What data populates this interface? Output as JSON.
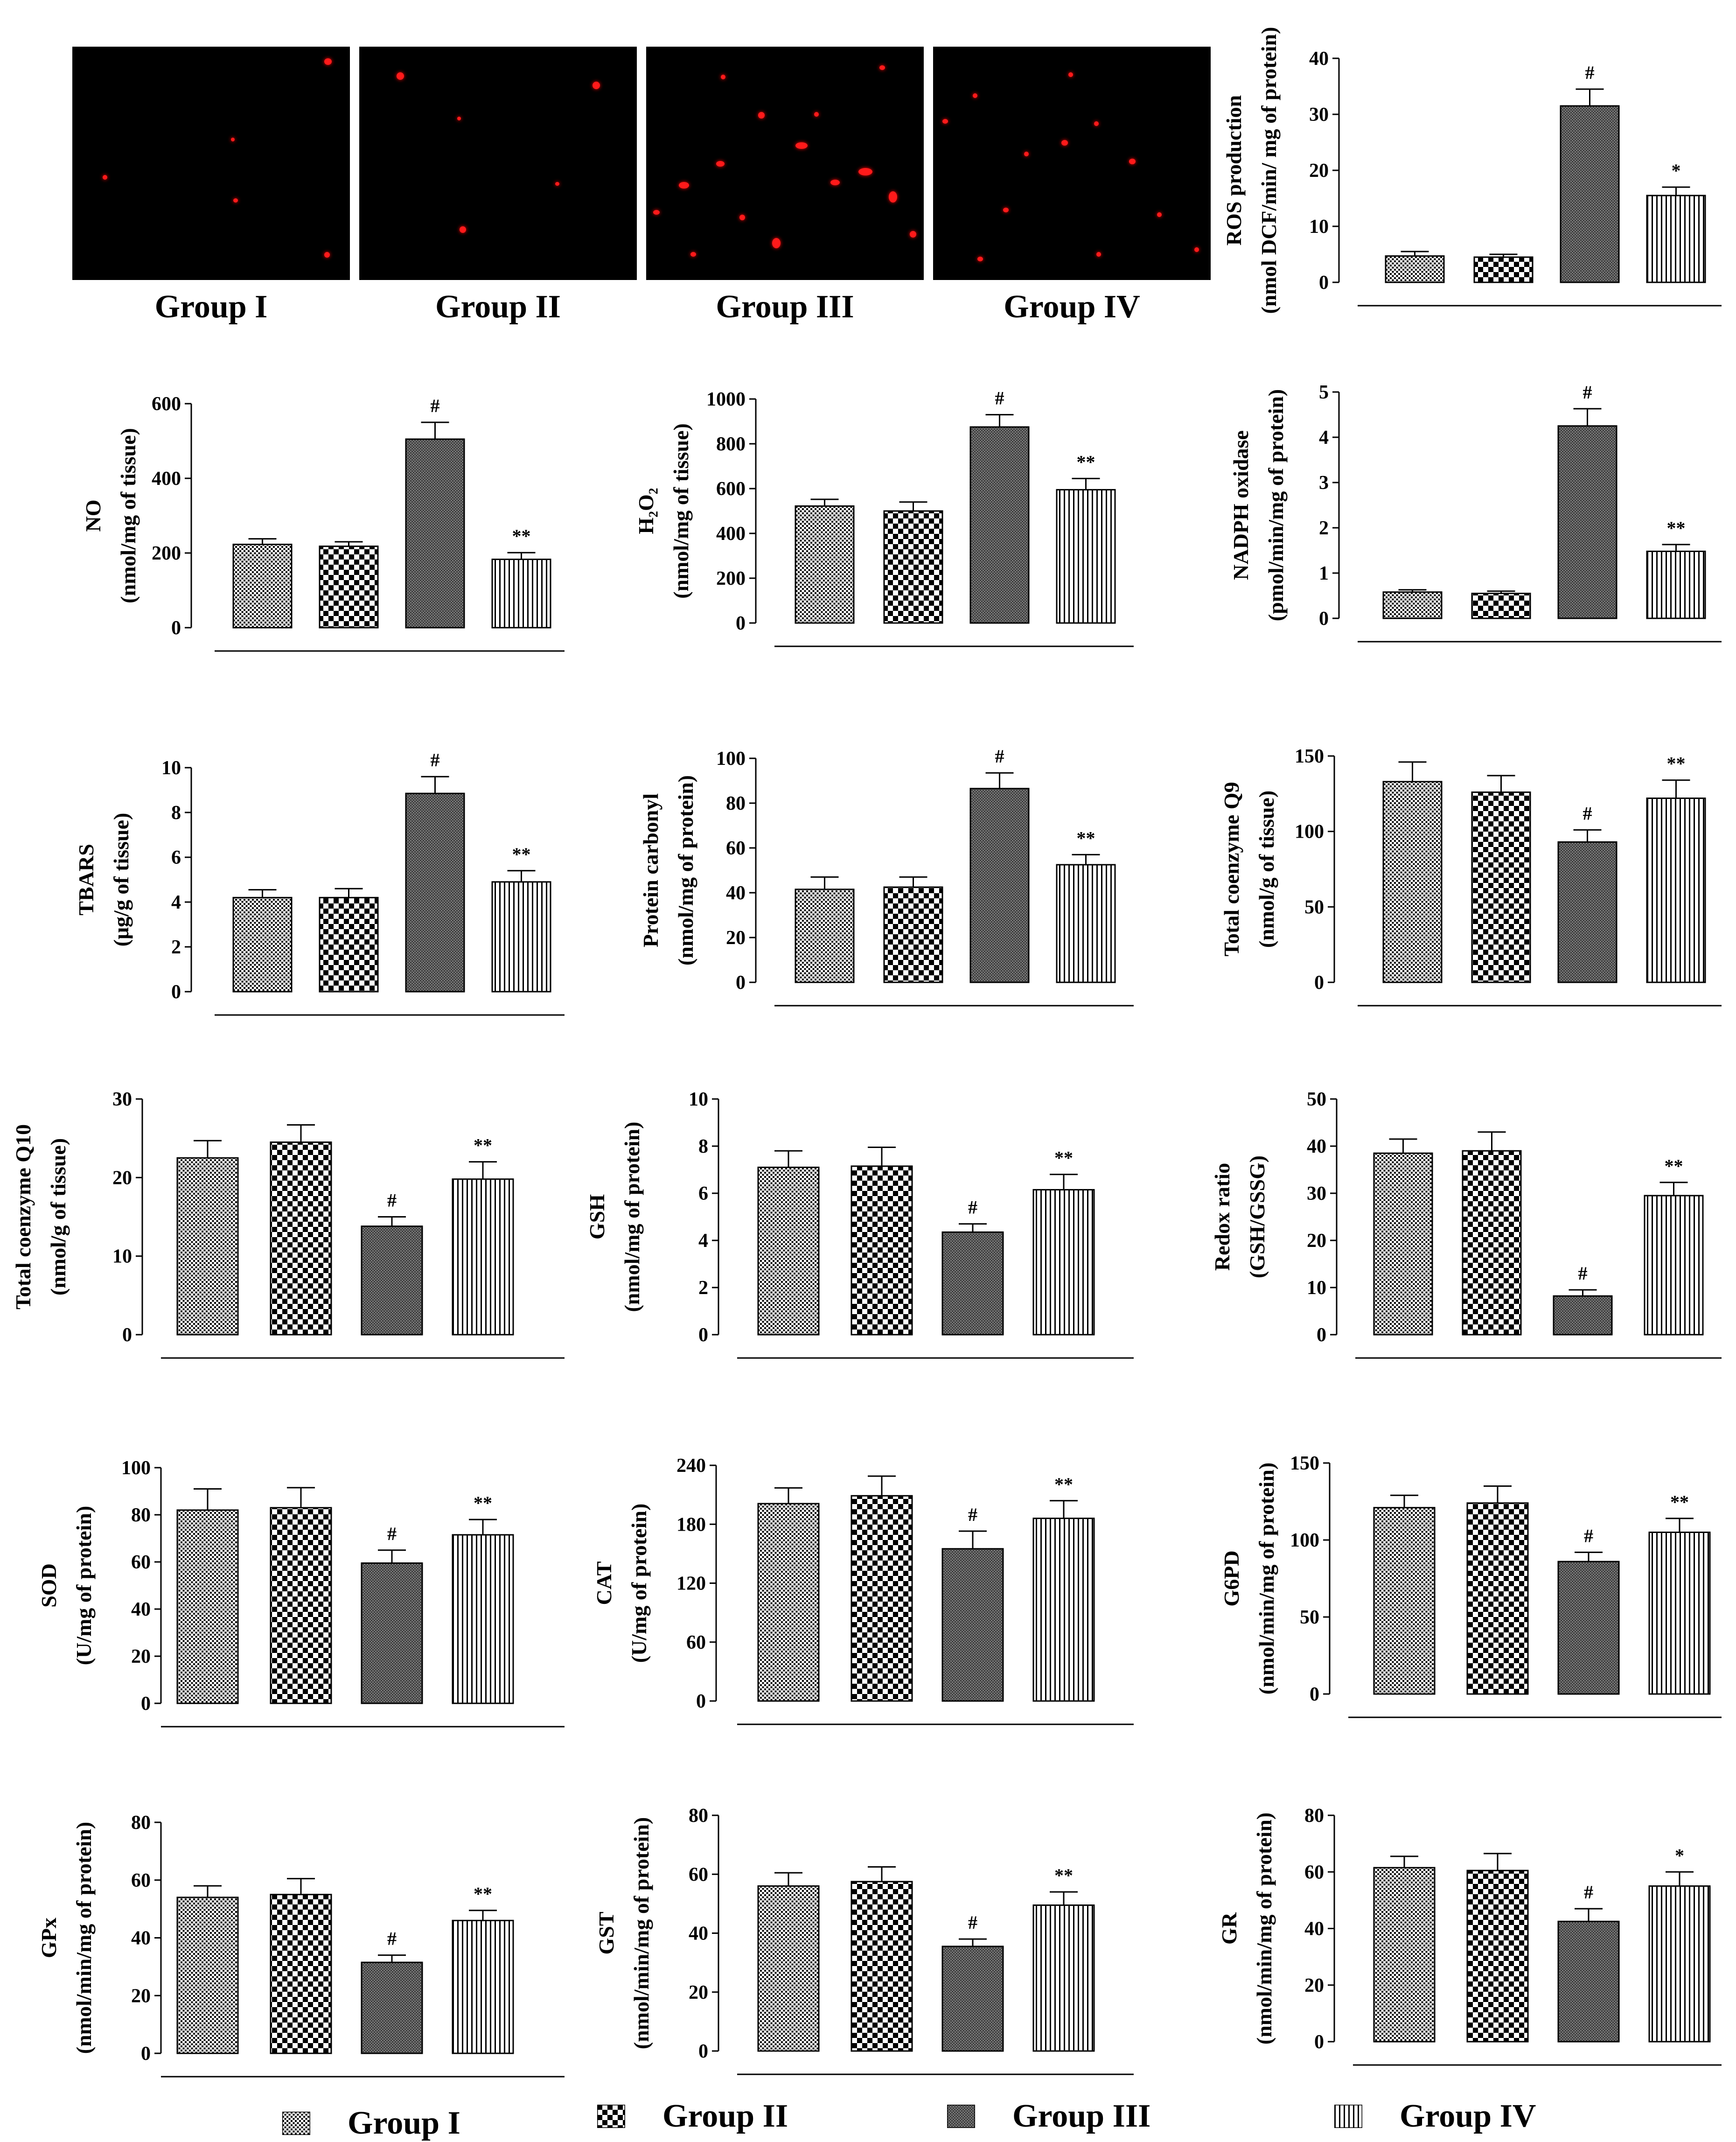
{
  "groups": [
    "Group I",
    "Group II",
    "Group III",
    "Group IV"
  ],
  "micrograph_labels": [
    "Group I",
    "Group II",
    "Group III",
    "Group IV"
  ],
  "legend": [
    {
      "label": "Group I",
      "pattern": "pat0"
    },
    {
      "label": "Group II",
      "pattern": "pat1"
    },
    {
      "label": "Group III",
      "pattern": "pat2"
    },
    {
      "label": "Group IV",
      "pattern": "pat3"
    }
  ],
  "colors": {
    "bar_stroke": "#000000",
    "background": "#ffffff",
    "micrograph_bg": "#000000",
    "fluorescence": "#ff1a1a"
  },
  "chart_data": [
    {
      "id": "ros",
      "type": "bar",
      "ylabel": [
        "ROS production",
        "(nmol DCF/min/ mg of protein)"
      ],
      "ylim": [
        0,
        40
      ],
      "ticks": [
        "0",
        "10",
        "20",
        "30",
        "40"
      ],
      "values": [
        4.7,
        4.5,
        31.5,
        15.5
      ],
      "errors": [
        0.8,
        0.5,
        3.0,
        1.5
      ],
      "sig": [
        "",
        "",
        "#",
        "*"
      ]
    },
    {
      "id": "no",
      "type": "bar",
      "ylabel": [
        "NO",
        "(nmol/mg of tissue)"
      ],
      "ylim": [
        0,
        600
      ],
      "ticks": [
        "0",
        "200",
        "400",
        "600"
      ],
      "values": [
        223,
        218,
        505,
        183
      ],
      "errors": [
        15,
        12,
        45,
        18
      ],
      "sig": [
        "",
        "",
        "#",
        "**"
      ]
    },
    {
      "id": "h2o2",
      "type": "bar",
      "ylabel": [
        "H₂O₂",
        "(nmol/mg of tissue)"
      ],
      "ylim": [
        0,
        1000
      ],
      "ticks": [
        "0",
        "200",
        "400",
        "600",
        "800",
        "1000"
      ],
      "values": [
        522,
        500,
        875,
        595
      ],
      "errors": [
        30,
        40,
        55,
        50
      ],
      "sig": [
        "",
        "",
        "#",
        "**"
      ]
    },
    {
      "id": "nadph",
      "type": "bar",
      "ylabel": [
        "NADPH oxidase",
        "(pmol/min/mg of protein)"
      ],
      "ylim": [
        0,
        5
      ],
      "ticks": [
        "0",
        "1",
        "2",
        "3",
        "4",
        "5"
      ],
      "values": [
        0.58,
        0.55,
        4.25,
        1.48
      ],
      "errors": [
        0.05,
        0.05,
        0.38,
        0.15
      ],
      "sig": [
        "",
        "",
        "#",
        "**"
      ]
    },
    {
      "id": "tbars",
      "type": "bar",
      "ylabel": [
        "TBARS",
        "(μg/g of tissue)"
      ],
      "ylim": [
        0,
        10
      ],
      "ticks": [
        "0",
        "2",
        "4",
        "6",
        "8",
        "10"
      ],
      "values": [
        4.2,
        4.2,
        8.85,
        4.9
      ],
      "errors": [
        0.35,
        0.4,
        0.75,
        0.5
      ],
      "sig": [
        "",
        "",
        "#",
        "**"
      ]
    },
    {
      "id": "protein_carbonyl",
      "type": "bar",
      "ylabel": [
        "Protein carbonyl",
        "(nmol/mg of protein)"
      ],
      "ylim": [
        0,
        100
      ],
      "ticks": [
        "0",
        "20",
        "40",
        "60",
        "80",
        "100"
      ],
      "values": [
        41.5,
        42.5,
        86.5,
        52.5
      ],
      "errors": [
        5.5,
        4.5,
        7.0,
        4.5
      ],
      "sig": [
        "",
        "",
        "#",
        "**"
      ]
    },
    {
      "id": "coq9",
      "type": "bar",
      "ylabel": [
        "Total coenzyme Q9",
        "(nmol/g of tissue)"
      ],
      "ylim": [
        0,
        150
      ],
      "ticks": [
        "0",
        "50",
        "100",
        "150"
      ],
      "values": [
        133,
        126,
        93,
        122
      ],
      "errors": [
        13,
        11,
        8,
        12
      ],
      "sig": [
        "",
        "",
        "#",
        "**"
      ]
    },
    {
      "id": "coq10",
      "type": "bar",
      "ylabel": [
        "Total coenzyme Q10",
        "(nmol/g of tissue)"
      ],
      "ylim": [
        0,
        30
      ],
      "ticks": [
        "0",
        "10",
        "20",
        "30"
      ],
      "values": [
        22.5,
        24.5,
        13.8,
        19.8
      ],
      "errors": [
        2.2,
        2.2,
        1.2,
        2.2
      ],
      "sig": [
        "",
        "",
        "#",
        "**"
      ]
    },
    {
      "id": "gsh",
      "type": "bar",
      "ylabel": [
        "GSH",
        "(nmol/mg of protein)"
      ],
      "ylim": [
        0,
        10
      ],
      "ticks": [
        "0",
        "2",
        "4",
        "6",
        "8",
        "10"
      ],
      "values": [
        7.1,
        7.15,
        4.35,
        6.15
      ],
      "errors": [
        0.7,
        0.8,
        0.35,
        0.65
      ],
      "sig": [
        "",
        "",
        "#",
        "**"
      ]
    },
    {
      "id": "redox",
      "type": "bar",
      "ylabel": [
        "Redox ratio",
        "(GSH/GSSG)"
      ],
      "ylim": [
        0,
        50
      ],
      "ticks": [
        "0",
        "10",
        "20",
        "30",
        "40",
        "50"
      ],
      "values": [
        38.5,
        39,
        8.2,
        29.5
      ],
      "errors": [
        3.0,
        4.0,
        1.3,
        2.8
      ],
      "sig": [
        "",
        "",
        "#",
        "**"
      ]
    },
    {
      "id": "sod",
      "type": "bar",
      "ylabel": [
        "SOD",
        "(U/mg of protein)"
      ],
      "ylim": [
        0,
        100
      ],
      "ticks": [
        "0",
        "20",
        "40",
        "60",
        "80",
        "100"
      ],
      "values": [
        82,
        83,
        59.5,
        71.5
      ],
      "errors": [
        9,
        8.5,
        5.5,
        6.5
      ],
      "sig": [
        "",
        "",
        "#",
        "**"
      ]
    },
    {
      "id": "cat",
      "type": "bar",
      "ylabel": [
        "CAT",
        "(U/mg of protein)"
      ],
      "ylim": [
        0,
        240
      ],
      "ticks": [
        "0",
        "60",
        "120",
        "180",
        "240"
      ],
      "values": [
        201,
        209,
        155,
        186
      ],
      "errors": [
        16,
        20,
        18,
        18
      ],
      "sig": [
        "",
        "",
        "#",
        "**"
      ]
    },
    {
      "id": "g6pd",
      "type": "bar",
      "ylabel": [
        "G6PD",
        "(nmol/min/mg of protein)"
      ],
      "ylim": [
        0,
        150
      ],
      "ticks": [
        "0",
        "50",
        "100",
        "150"
      ],
      "values": [
        121,
        124,
        86,
        105
      ],
      "errors": [
        8,
        11,
        6,
        9
      ],
      "sig": [
        "",
        "",
        "#",
        "**"
      ]
    },
    {
      "id": "gpx",
      "type": "bar",
      "ylabel": [
        "GPx",
        "(nmol/min/mg of protein)"
      ],
      "ylim": [
        0,
        80
      ],
      "ticks": [
        "0",
        "20",
        "40",
        "60",
        "80"
      ],
      "values": [
        54,
        55,
        31.5,
        46
      ],
      "errors": [
        4,
        5.5,
        2.5,
        3.5
      ],
      "sig": [
        "",
        "",
        "#",
        "**"
      ]
    },
    {
      "id": "gst",
      "type": "bar",
      "ylabel": [
        "GST",
        "(nmol/min/mg of protein)"
      ],
      "ylim": [
        0,
        80
      ],
      "ticks": [
        "0",
        "20",
        "40",
        "60",
        "80"
      ],
      "values": [
        56,
        57.5,
        35.5,
        49.5
      ],
      "errors": [
        4.5,
        5,
        2.5,
        4.5
      ],
      "sig": [
        "",
        "",
        "#",
        "**"
      ]
    },
    {
      "id": "gr",
      "type": "bar",
      "ylabel": [
        "GR",
        "(nmol/min/mg of protein)"
      ],
      "ylim": [
        0,
        80
      ],
      "ticks": [
        "0",
        "20",
        "40",
        "60",
        "80"
      ],
      "values": [
        61.5,
        60.5,
        42.5,
        55
      ],
      "errors": [
        4,
        6,
        4.5,
        5
      ],
      "sig": [
        "",
        "",
        "#",
        "*"
      ]
    }
  ]
}
